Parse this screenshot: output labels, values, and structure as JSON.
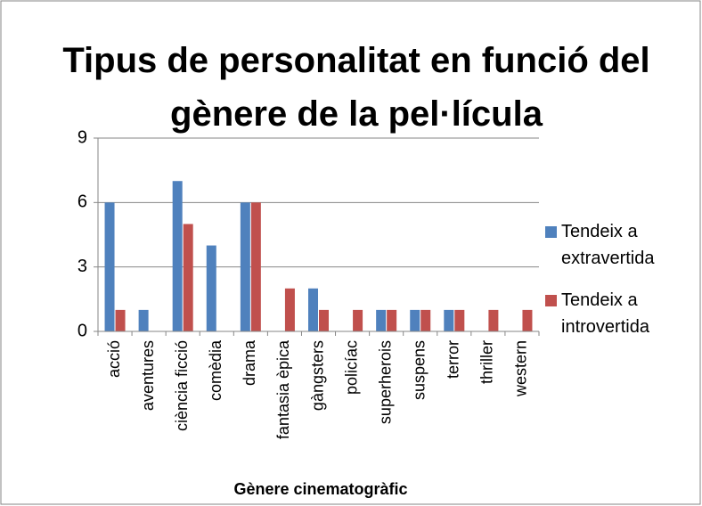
{
  "chart_data": {
    "type": "bar",
    "title": "Tipus de personalitat en funció del gènere de la pel·lícula",
    "x_label": "Gènere cinematogràfic",
    "categories": [
      "acció",
      "aventures",
      "ciència ficció",
      "comèdia",
      "drama",
      "fantasia èpica",
      "gàngsters",
      "policíac",
      "superherois",
      "suspens",
      "terror",
      "thriller",
      "western"
    ],
    "series": [
      {
        "name": "Tendeix a extravertida",
        "color": "#4f81bd",
        "values": [
          6,
          1,
          7,
          4,
          6,
          0,
          2,
          0,
          1,
          1,
          1,
          0,
          0
        ]
      },
      {
        "name": "Tendeix a introvertida",
        "color": "#c0504d",
        "values": [
          1,
          0,
          5,
          0,
          6,
          2,
          1,
          1,
          1,
          1,
          1,
          1,
          1
        ]
      }
    ],
    "ylim": [
      0,
      9
    ],
    "yticks": [
      0,
      3,
      6,
      9
    ],
    "grid": true,
    "legend": "right"
  }
}
